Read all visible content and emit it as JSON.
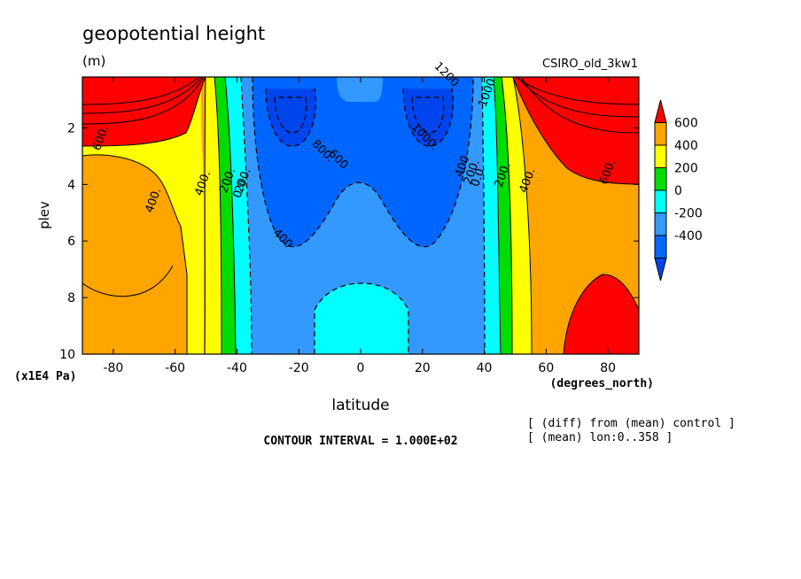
{
  "chart_data": {
    "type": "heatmap",
    "title": "geopotential height",
    "units": "(m)",
    "run_label": "CSIRO_old_3kw1",
    "xlabel": "latitude",
    "ylabel": "plev",
    "y_unit_note": "(x1E4 Pa)",
    "x_unit_note": "(degrees_north)",
    "contour_interval_text": "CONTOUR INTERVAL = 1.000E+02",
    "notes": [
      "[ (diff) from (mean) control ]",
      "[ (mean) lon:0..358 ]"
    ],
    "xlim": [
      -90,
      90
    ],
    "ylim": [
      10,
      0.2
    ],
    "y_reversed": true,
    "x_ticks": [
      -80,
      -60,
      -40,
      -20,
      0,
      20,
      40,
      60,
      80
    ],
    "y_ticks": [
      2,
      4,
      6,
      8,
      10
    ],
    "contour_labels": [
      {
        "text": "600.",
        "x": -83,
        "y": 2.4
      },
      {
        "text": "400.",
        "x": -66,
        "y": 4.6
      },
      {
        "text": "400.",
        "x": -50,
        "y": 4.0
      },
      {
        "text": "200.",
        "x": -42,
        "y": 3.9
      },
      {
        "text": "200.",
        "x": -37,
        "y": 3.9
      },
      {
        "text": "0.0",
        "x": -38,
        "y": 4.2
      },
      {
        "text": "400",
        "x": -26,
        "y": 6.0
      },
      {
        "text": "800.",
        "x": -13,
        "y": 2.9
      },
      {
        "text": "600",
        "x": -8,
        "y": 3.2
      },
      {
        "text": "1000.",
        "x": 20,
        "y": 2.4
      },
      {
        "text": "1200",
        "x": 27,
        "y": 0.2
      },
      {
        "text": "1000",
        "x": 42,
        "y": 0.8
      },
      {
        "text": "400",
        "x": 34,
        "y": 3.4
      },
      {
        "text": "200.",
        "x": 37,
        "y": 3.6
      },
      {
        "text": "0.0",
        "x": 39,
        "y": 3.8
      },
      {
        "text": "200.",
        "x": 47,
        "y": 3.7
      },
      {
        "text": "400.",
        "x": 55,
        "y": 3.9
      },
      {
        "text": "600.",
        "x": 81,
        "y": 3.6
      }
    ],
    "colorbar": {
      "labels": [
        "600",
        "400",
        "200",
        "0",
        "-200",
        "-400"
      ],
      "colors": [
        "#ff0000",
        "#ffa500",
        "#ffff00",
        "#00dd00",
        "#00ffff",
        "#3399ff",
        "#0066ff",
        "#0044ee"
      ]
    }
  }
}
